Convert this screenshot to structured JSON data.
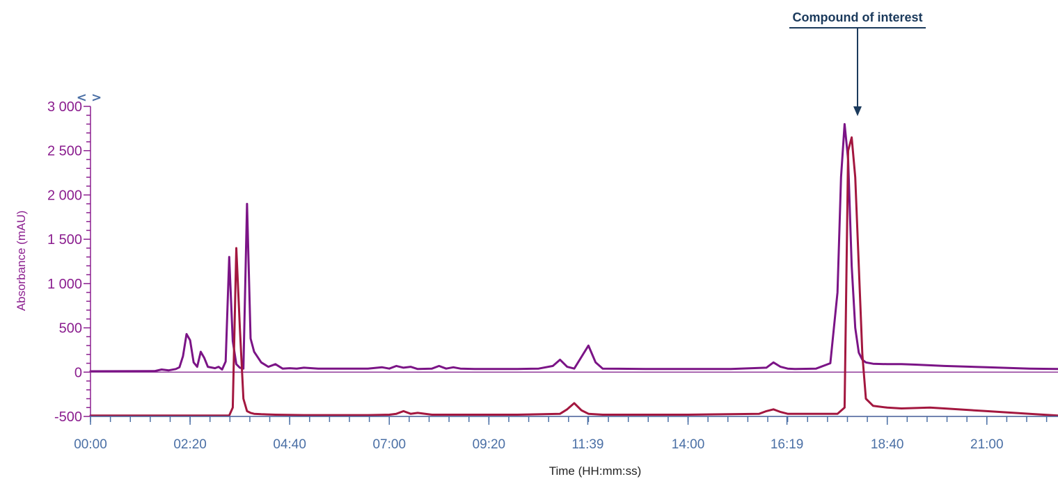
{
  "chart_data": {
    "type": "line",
    "title": "",
    "xlabel": "Time (HH:mm:ss)",
    "ylabel": "Absorbance (mAU)",
    "xlim": [
      "00:00",
      "22:40"
    ],
    "ylim": [
      -500,
      3000
    ],
    "x_ticks": [
      "00:00",
      "02:20",
      "04:40",
      "07:00",
      "09:20",
      "11:39",
      "14:00",
      "16:19",
      "18:40",
      "21:00"
    ],
    "y_ticks": [
      "-500",
      "0",
      "500",
      "1 000",
      "1 500",
      "2 000",
      "2 500",
      "3 000"
    ],
    "zoom_control": "< >",
    "grid": false,
    "legend": "none",
    "baselines": [
      0,
      -500
    ],
    "annotation": {
      "text": "Compound of interest",
      "x": "17:50",
      "y": 2800
    },
    "colors": {
      "axis": "#8b1e8f",
      "series_1": "#7b1486",
      "series_2": "#a3173f",
      "ticks": "#4a6fa5",
      "annotation": "#1b3a5c"
    },
    "series": [
      {
        "x": [
          "00:00",
          "01:30",
          "01:40",
          "01:50",
          "02:00",
          "02:05",
          "02:10",
          "02:15",
          "02:20",
          "02:25",
          "02:30",
          "02:35",
          "02:40",
          "02:45",
          "02:55",
          "03:00",
          "03:05",
          "03:10",
          "03:15",
          "03:20",
          "03:25",
          "03:30",
          "03:35",
          "03:40",
          "03:45",
          "03:50",
          "04:00",
          "04:10",
          "04:20",
          "04:30",
          "04:40",
          "04:50",
          "05:00",
          "05:20",
          "05:40",
          "06:00",
          "06:30",
          "06:50",
          "07:00",
          "07:10",
          "07:20",
          "07:30",
          "07:40",
          "08:00",
          "08:10",
          "08:20",
          "08:30",
          "08:40",
          "09:00",
          "10:00",
          "10:30",
          "10:50",
          "11:00",
          "11:10",
          "11:20",
          "11:30",
          "11:40",
          "11:50",
          "12:00",
          "13:00",
          "14:00",
          "15:00",
          "15:50",
          "16:00",
          "16:10",
          "16:20",
          "16:30",
          "17:00",
          "17:20",
          "17:30",
          "17:35",
          "17:40",
          "17:45",
          "17:50",
          "17:55",
          "18:00",
          "18:05",
          "18:10",
          "18:20",
          "18:40",
          "19:00",
          "19:20",
          "20:00",
          "21:00",
          "22:00",
          "22:40"
        ],
        "y": [
          10,
          12,
          30,
          20,
          35,
          55,
          180,
          430,
          360,
          110,
          60,
          230,
          160,
          60,
          45,
          60,
          30,
          120,
          1300,
          350,
          90,
          50,
          40,
          1900,
          380,
          230,
          110,
          60,
          90,
          40,
          45,
          40,
          50,
          40,
          40,
          40,
          40,
          55,
          40,
          70,
          50,
          60,
          35,
          40,
          70,
          40,
          55,
          40,
          35,
          35,
          40,
          70,
          140,
          60,
          40,
          170,
          300,
          110,
          40,
          35,
          35,
          35,
          50,
          110,
          60,
          40,
          35,
          40,
          100,
          900,
          2200,
          2800,
          2400,
          1200,
          500,
          220,
          140,
          110,
          95,
          90,
          90,
          85,
          70,
          55,
          40,
          35
        ]
      },
      {
        "x": [
          "00:00",
          "03:00",
          "03:15",
          "03:20",
          "03:25",
          "03:30",
          "03:35",
          "03:40",
          "03:45",
          "03:50",
          "04:00",
          "04:20",
          "05:00",
          "06:00",
          "06:30",
          "07:00",
          "07:10",
          "07:20",
          "07:30",
          "07:40",
          "08:00",
          "10:00",
          "11:00",
          "11:10",
          "11:20",
          "11:30",
          "11:40",
          "12:00",
          "14:00",
          "15:40",
          "15:50",
          "16:00",
          "16:10",
          "16:20",
          "17:00",
          "17:30",
          "17:40",
          "17:45",
          "17:50",
          "17:55",
          "18:00",
          "18:05",
          "18:10",
          "18:20",
          "18:40",
          "19:00",
          "19:40",
          "20:00",
          "21:00",
          "22:00",
          "22:40"
        ],
        "y": [
          -490,
          -490,
          -490,
          -400,
          1400,
          500,
          -300,
          -440,
          -460,
          -470,
          -475,
          -480,
          -485,
          -485,
          -485,
          -480,
          -470,
          -440,
          -470,
          -460,
          -480,
          -480,
          -470,
          -420,
          -350,
          -430,
          -470,
          -480,
          -480,
          -470,
          -440,
          -420,
          -450,
          -470,
          -470,
          -470,
          -400,
          2500,
          2650,
          2200,
          1200,
          200,
          -300,
          -380,
          -400,
          -410,
          -400,
          -410,
          -440,
          -470,
          -490
        ]
      }
    ]
  }
}
